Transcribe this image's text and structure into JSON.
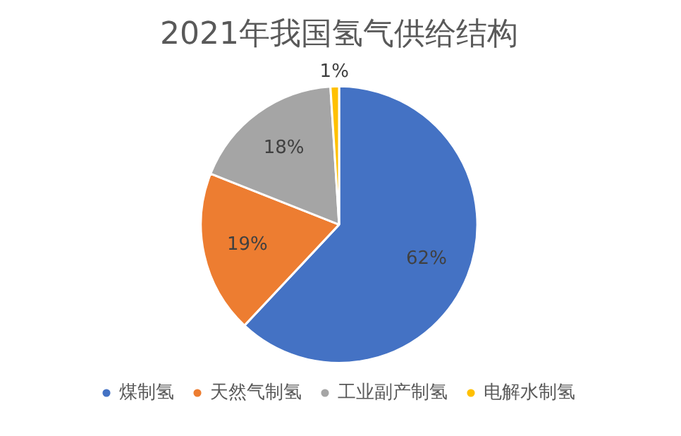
{
  "chart_data": {
    "type": "pie",
    "title": "2021年我国氢气供给结构",
    "categories": [
      "煤制氢",
      "天然气制氢",
      "工业副产制氢",
      "电解水制氢"
    ],
    "values": [
      62,
      19,
      18,
      1
    ],
    "colors": [
      "#4472c4",
      "#ed7d31",
      "#a5a5a5",
      "#ffc000"
    ],
    "value_labels": [
      "62%",
      "19%",
      "18%",
      "1%"
    ],
    "legend": "bottom"
  }
}
